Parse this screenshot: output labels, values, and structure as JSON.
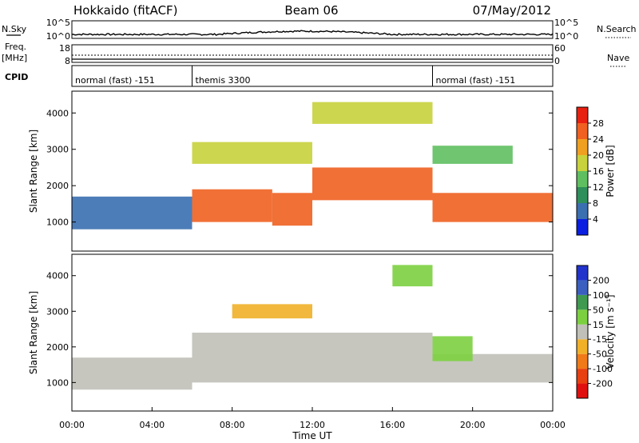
{
  "header": {
    "station": "Hokkaido (fitACF)",
    "beam": "Beam 06",
    "date": "07/May/2012"
  },
  "left_labels": {
    "nsky": "N.Sky",
    "freq1": "Freq.",
    "freq2": "[MHz]",
    "cpid": "CPID"
  },
  "right_labels": {
    "nsearch": "N.Search",
    "nave": "Nave"
  },
  "small_axes": {
    "nsky_ticks": [
      "10^5",
      "10^0"
    ],
    "nsearch_ticks": [
      "10^5",
      "10^0"
    ],
    "freq_ticks": [
      "18",
      "8"
    ],
    "nave_ticks": [
      "60",
      "0"
    ]
  },
  "cpid_segments": [
    {
      "label": "normal (fast) -151",
      "start_h": 0,
      "end_h": 6
    },
    {
      "label": "themis 3300",
      "start_h": 6,
      "end_h": 18
    },
    {
      "label": "normal (fast) -151",
      "start_h": 18,
      "end_h": 24
    }
  ],
  "colors": {
    "power_scale": [
      "#0b1fe0",
      "#3a6fb0",
      "#2f8f5a",
      "#5fbf60",
      "#c8d23c",
      "#f0a020",
      "#f06020",
      "#e82010"
    ],
    "velocity_scale": [
      "#2233cc",
      "#3a5fc0",
      "#3f9a50",
      "#7cd040",
      "#c0c0b8",
      "#f0b028",
      "#f07a18",
      "#e84010",
      "#e01010"
    ]
  },
  "chart_data": [
    {
      "type": "heatmap",
      "title": "Power",
      "xlabel": "",
      "ylabel": "Slant Range [km]",
      "xlim": [
        0,
        24
      ],
      "ylim": [
        200,
        4600
      ],
      "y_ticks": [
        "4000",
        "3000",
        "2000",
        "1000"
      ],
      "colorbar_label": "Power [dB]",
      "colorbar_ticks": [
        "28",
        "24",
        "20",
        "16",
        "12",
        "8",
        "4"
      ],
      "colorbar_range": [
        0,
        32
      ],
      "echo_bands": [
        {
          "t_start": 0,
          "t_end": 6,
          "range_km": [
            800,
            1700
          ],
          "power_db": 6
        },
        {
          "t_start": 6,
          "t_end": 10,
          "range_km": [
            1000,
            1900
          ],
          "power_db": 26
        },
        {
          "t_start": 10,
          "t_end": 12,
          "range_km": [
            900,
            1800
          ],
          "power_db": 26
        },
        {
          "t_start": 12,
          "t_end": 18,
          "range_km": [
            1600,
            2500
          ],
          "power_db": 26
        },
        {
          "t_start": 18,
          "t_end": 24,
          "range_km": [
            1000,
            1800
          ],
          "power_db": 24
        },
        {
          "t_start": 6,
          "t_end": 12,
          "range_km": [
            2600,
            3200
          ],
          "power_db": 18
        },
        {
          "t_start": 12,
          "t_end": 18,
          "range_km": [
            3700,
            4300
          ],
          "power_db": 16
        },
        {
          "t_start": 18,
          "t_end": 22,
          "range_km": [
            2600,
            3100
          ],
          "power_db": 12
        }
      ]
    },
    {
      "type": "heatmap",
      "title": "Velocity",
      "xlabel": "Time UT",
      "ylabel": "Slant Range [km]",
      "xlim": [
        0,
        24
      ],
      "ylim": [
        200,
        4600
      ],
      "x_ticks": [
        "00:00",
        "04:00",
        "08:00",
        "12:00",
        "16:00",
        "20:00",
        "00:00"
      ],
      "y_ticks": [
        "4000",
        "3000",
        "2000",
        "1000"
      ],
      "colorbar_label": "Velocity [m s⁻¹]",
      "colorbar_ticks": [
        "200",
        "100",
        "50",
        "15",
        "-15",
        "-50",
        "-100",
        "-200"
      ],
      "echo_bands": [
        {
          "t_start": 0,
          "t_end": 6,
          "range_km": [
            800,
            1700
          ],
          "velocity": 0
        },
        {
          "t_start": 6,
          "t_end": 18,
          "range_km": [
            1000,
            2400
          ],
          "velocity": 0
        },
        {
          "t_start": 18,
          "t_end": 24,
          "range_km": [
            1000,
            1800
          ],
          "velocity": 0
        },
        {
          "t_start": 8,
          "t_end": 12,
          "range_km": [
            2800,
            3200
          ],
          "velocity": -60
        },
        {
          "t_start": 18,
          "t_end": 20,
          "range_km": [
            1600,
            2300
          ],
          "velocity": 40
        },
        {
          "t_start": 16,
          "t_end": 18,
          "range_km": [
            3700,
            4300
          ],
          "velocity": 40
        }
      ]
    }
  ]
}
